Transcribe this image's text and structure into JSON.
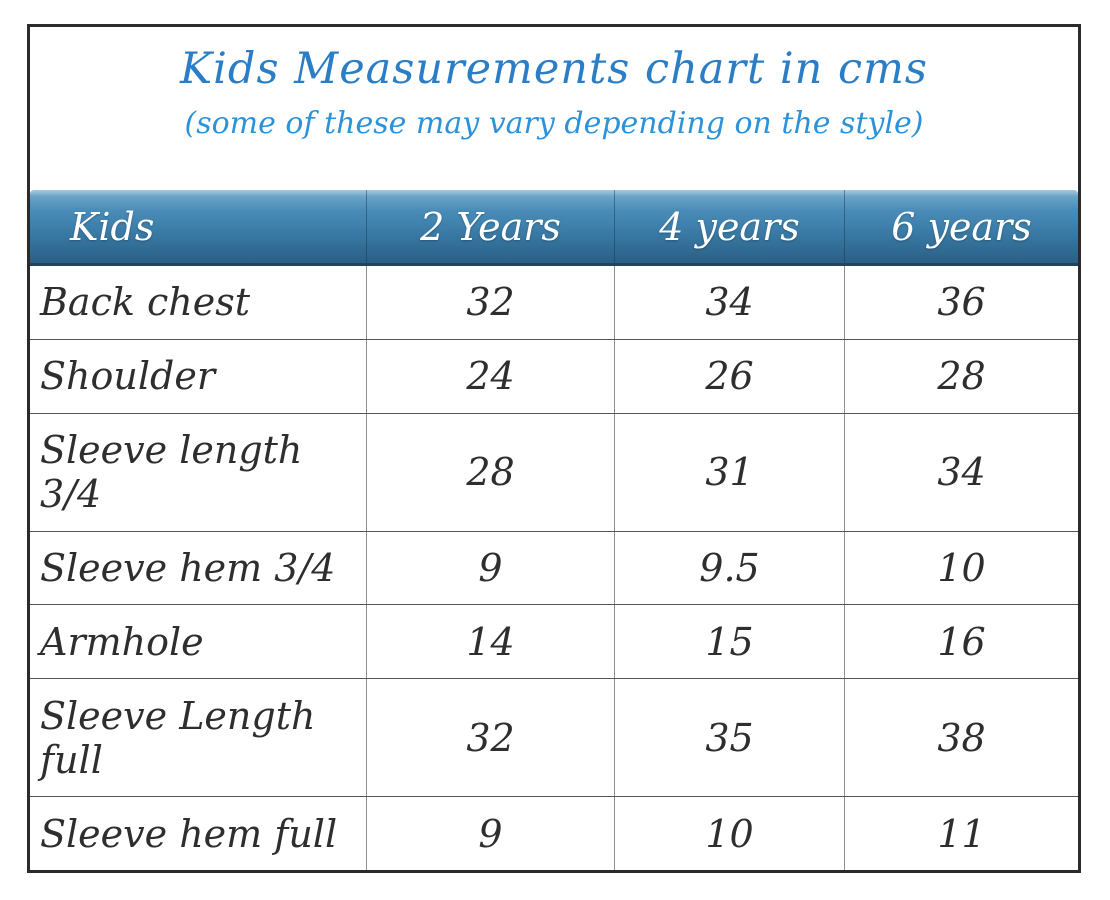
{
  "page": {
    "title": "Kids Measurements chart in cms",
    "subtitle": "(some of these may vary depending on the style)"
  },
  "table": {
    "columns": [
      "Kids",
      "2 Years",
      "4 years",
      "6 years"
    ],
    "rows": [
      {
        "label": "Back chest",
        "values": [
          "32",
          "34",
          "36"
        ]
      },
      {
        "label": "Shoulder",
        "values": [
          "24",
          "26",
          "28"
        ]
      },
      {
        "label": "Sleeve length 3/4",
        "values": [
          "28",
          "31",
          "34"
        ]
      },
      {
        "label": "Sleeve hem 3/4",
        "values": [
          "9",
          "9.5",
          "10"
        ]
      },
      {
        "label": "Armhole",
        "values": [
          "14",
          "15",
          "16"
        ]
      },
      {
        "label": "Sleeve Length full",
        "values": [
          "32",
          "35",
          "38"
        ]
      },
      {
        "label": "Sleeve hem full",
        "values": [
          "9",
          "10",
          "11"
        ]
      }
    ]
  },
  "chart_data": {
    "type": "table",
    "title": "Kids Measurements chart in cms",
    "subtitle": "(some of these may vary depending on the style)",
    "columns": [
      "Kids",
      "2 Years",
      "4 years",
      "6 years"
    ],
    "rows": [
      [
        "Back chest",
        32,
        34,
        36
      ],
      [
        "Shoulder",
        24,
        26,
        28
      ],
      [
        "Sleeve length 3/4",
        28,
        31,
        34
      ],
      [
        "Sleeve hem 3/4",
        9,
        9.5,
        10
      ],
      [
        "Armhole",
        14,
        15,
        16
      ],
      [
        "Sleeve Length full",
        32,
        35,
        38
      ],
      [
        "Sleeve hem full",
        9,
        10,
        11
      ]
    ],
    "units": "cms"
  },
  "colors": {
    "title_blue": "#2b7ec5",
    "subtitle_blue": "#2d93d8",
    "header_gradient_top": "#6aa3c6",
    "header_gradient_bottom": "#2b5f84",
    "header_text": "#ffffff",
    "body_text": "#2e2e30",
    "outer_border": "#2b2b2b"
  }
}
